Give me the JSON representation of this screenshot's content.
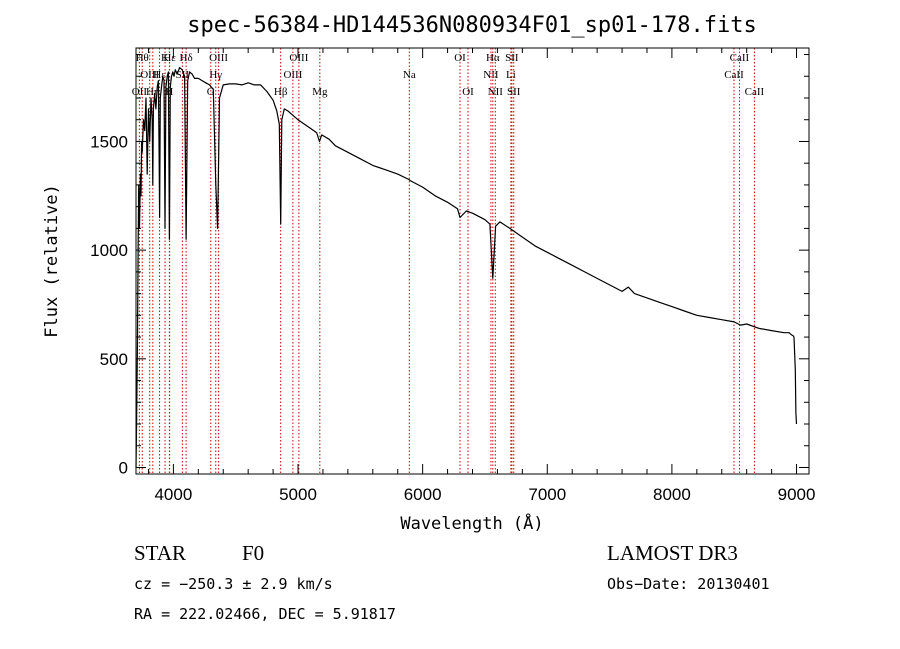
{
  "chart_data": {
    "type": "line",
    "title": "spec-56384-HD144536N080934F01_sp01-178.fits",
    "xlabel": "Wavelength (Å)",
    "ylabel": "Flux (relative)",
    "xlim": [
      3700,
      9100
    ],
    "ylim": [
      -30,
      1930
    ],
    "xticks": [
      4000,
      5000,
      6000,
      7000,
      8000,
      9000
    ],
    "yticks": [
      0,
      500,
      1000,
      1500
    ],
    "xtick_labels": [
      "4000",
      "5000",
      "6000",
      "7000",
      "8000",
      "9000"
    ],
    "ytick_labels": [
      "0",
      "500",
      "1000",
      "1500"
    ],
    "line_color": "#000000",
    "marker_color": "#cc0000",
    "series": [
      {
        "name": "spectrum",
        "x": [
          3700,
          3705,
          3712,
          3718,
          3722,
          3728,
          3735,
          3740,
          3745,
          3750,
          3760,
          3770,
          3780,
          3790,
          3800,
          3810,
          3820,
          3830,
          3835,
          3840,
          3850,
          3860,
          3870,
          3880,
          3885,
          3889,
          3895,
          3905,
          3915,
          3925,
          3933,
          3940,
          3950,
          3960,
          3968,
          3975,
          3985,
          3995,
          4005,
          4015,
          4030,
          4050,
          4070,
          4090,
          4102,
          4115,
          4130,
          4150,
          4170,
          4200,
          4230,
          4260,
          4290,
          4320,
          4340,
          4355,
          4370,
          4400,
          4450,
          4500,
          4550,
          4600,
          4650,
          4700,
          4750,
          4800,
          4830,
          4850,
          4861,
          4870,
          4890,
          4920,
          4960,
          5000,
          5050,
          5100,
          5150,
          5172,
          5190,
          5250,
          5300,
          5400,
          5500,
          5600,
          5700,
          5800,
          5890,
          5900,
          6000,
          6100,
          6200,
          6280,
          6300,
          6350,
          6400,
          6500,
          6540,
          6563,
          6585,
          6620,
          6700,
          6800,
          6900,
          7000,
          7100,
          7200,
          7300,
          7400,
          7500,
          7600,
          7650,
          7700,
          7800,
          7900,
          8000,
          8100,
          8200,
          8300,
          8400,
          8500,
          8550,
          8600,
          8700,
          8800,
          8900,
          8940,
          8960,
          8975,
          8980,
          8990,
          8995,
          9000
        ],
        "y": [
          0,
          200,
          600,
          1050,
          1300,
          1100,
          1350,
          1250,
          1500,
          1450,
          1600,
          1550,
          1700,
          1350,
          1650,
          1500,
          1700,
          1600,
          1300,
          1650,
          1720,
          1650,
          1750,
          1780,
          1450,
          1150,
          1700,
          1750,
          1800,
          1780,
          1100,
          1750,
          1800,
          1820,
          1050,
          1750,
          1800,
          1820,
          1800,
          1830,
          1810,
          1840,
          1830,
          1800,
          1050,
          1780,
          1820,
          1810,
          1790,
          1790,
          1780,
          1770,
          1760,
          1740,
          1300,
          1100,
          1700,
          1760,
          1765,
          1765,
          1760,
          1770,
          1760,
          1760,
          1730,
          1690,
          1640,
          1580,
          1120,
          1600,
          1650,
          1640,
          1620,
          1600,
          1580,
          1560,
          1540,
          1500,
          1530,
          1510,
          1480,
          1450,
          1420,
          1390,
          1370,
          1350,
          1325,
          1320,
          1290,
          1250,
          1220,
          1190,
          1150,
          1180,
          1170,
          1140,
          1120,
          870,
          1110,
          1130,
          1100,
          1060,
          1020,
          990,
          960,
          930,
          900,
          870,
          840,
          810,
          830,
          800,
          780,
          760,
          740,
          720,
          700,
          690,
          680,
          670,
          655,
          660,
          640,
          630,
          620,
          620,
          610,
          605,
          600,
          450,
          250,
          200
        ]
      }
    ],
    "lines": [
      {
        "label": "OII",
        "wavelength": 3727,
        "row": 3
      },
      {
        "label": "Hθ",
        "wavelength": 3750,
        "row": 1
      },
      {
        "label": "Hη",
        "wavelength": 3835,
        "row": 3
      },
      {
        "label": "OIII",
        "wavelength": 3810,
        "row": 2
      },
      {
        "label": "Hε",
        "wavelength": 3889,
        "row": 2
      },
      {
        "label": "K",
        "wavelength": 3933,
        "row": 1
      },
      {
        "label": "H",
        "wavelength": 3968,
        "row": 3
      },
      {
        "label": "Hε",
        "wavelength": 3970,
        "row": 1
      },
      {
        "label": "SII",
        "wavelength": 4072,
        "row": 2
      },
      {
        "label": "Hδ",
        "wavelength": 4102,
        "row": 1
      },
      {
        "label": "G",
        "wavelength": 4300,
        "row": 3
      },
      {
        "label": "Hγ",
        "wavelength": 4340,
        "row": 2
      },
      {
        "label": "OIII",
        "wavelength": 4363,
        "row": 1
      },
      {
        "label": "Hβ",
        "wavelength": 4861,
        "row": 3
      },
      {
        "label": "OIII",
        "wavelength": 4959,
        "row": 2
      },
      {
        "label": "OIII",
        "wavelength": 5007,
        "row": 1
      },
      {
        "label": "Mg",
        "wavelength": 5175,
        "row": 3
      },
      {
        "label": "Na",
        "wavelength": 5893,
        "row": 2
      },
      {
        "label": "OI",
        "wavelength": 6300,
        "row": 1
      },
      {
        "label": "OI",
        "wavelength": 6364,
        "row": 3
      },
      {
        "label": "NII",
        "wavelength": 6548,
        "row": 2
      },
      {
        "label": "Hα",
        "wavelength": 6563,
        "row": 1
      },
      {
        "label": "NII",
        "wavelength": 6583,
        "row": 3
      },
      {
        "label": "Li",
        "wavelength": 6708,
        "row": 2
      },
      {
        "label": "SII",
        "wavelength": 6716,
        "row": 1
      },
      {
        "label": "SII",
        "wavelength": 6731,
        "row": 3
      },
      {
        "label": "CaII",
        "wavelength": 8498,
        "row": 2
      },
      {
        "label": "CaII",
        "wavelength": 8542,
        "row": 1
      },
      {
        "label": "CaII",
        "wavelength": 8662,
        "row": 3
      }
    ]
  },
  "info": {
    "object_class": "STAR",
    "subclass": "F0",
    "survey": "LAMOST DR3",
    "cz": "cz = −250.3 ± 2.9 km/s",
    "obs_date": "Obs−Date: 20130401",
    "coords": "RA = 222.02466, DEC =   5.91817"
  }
}
